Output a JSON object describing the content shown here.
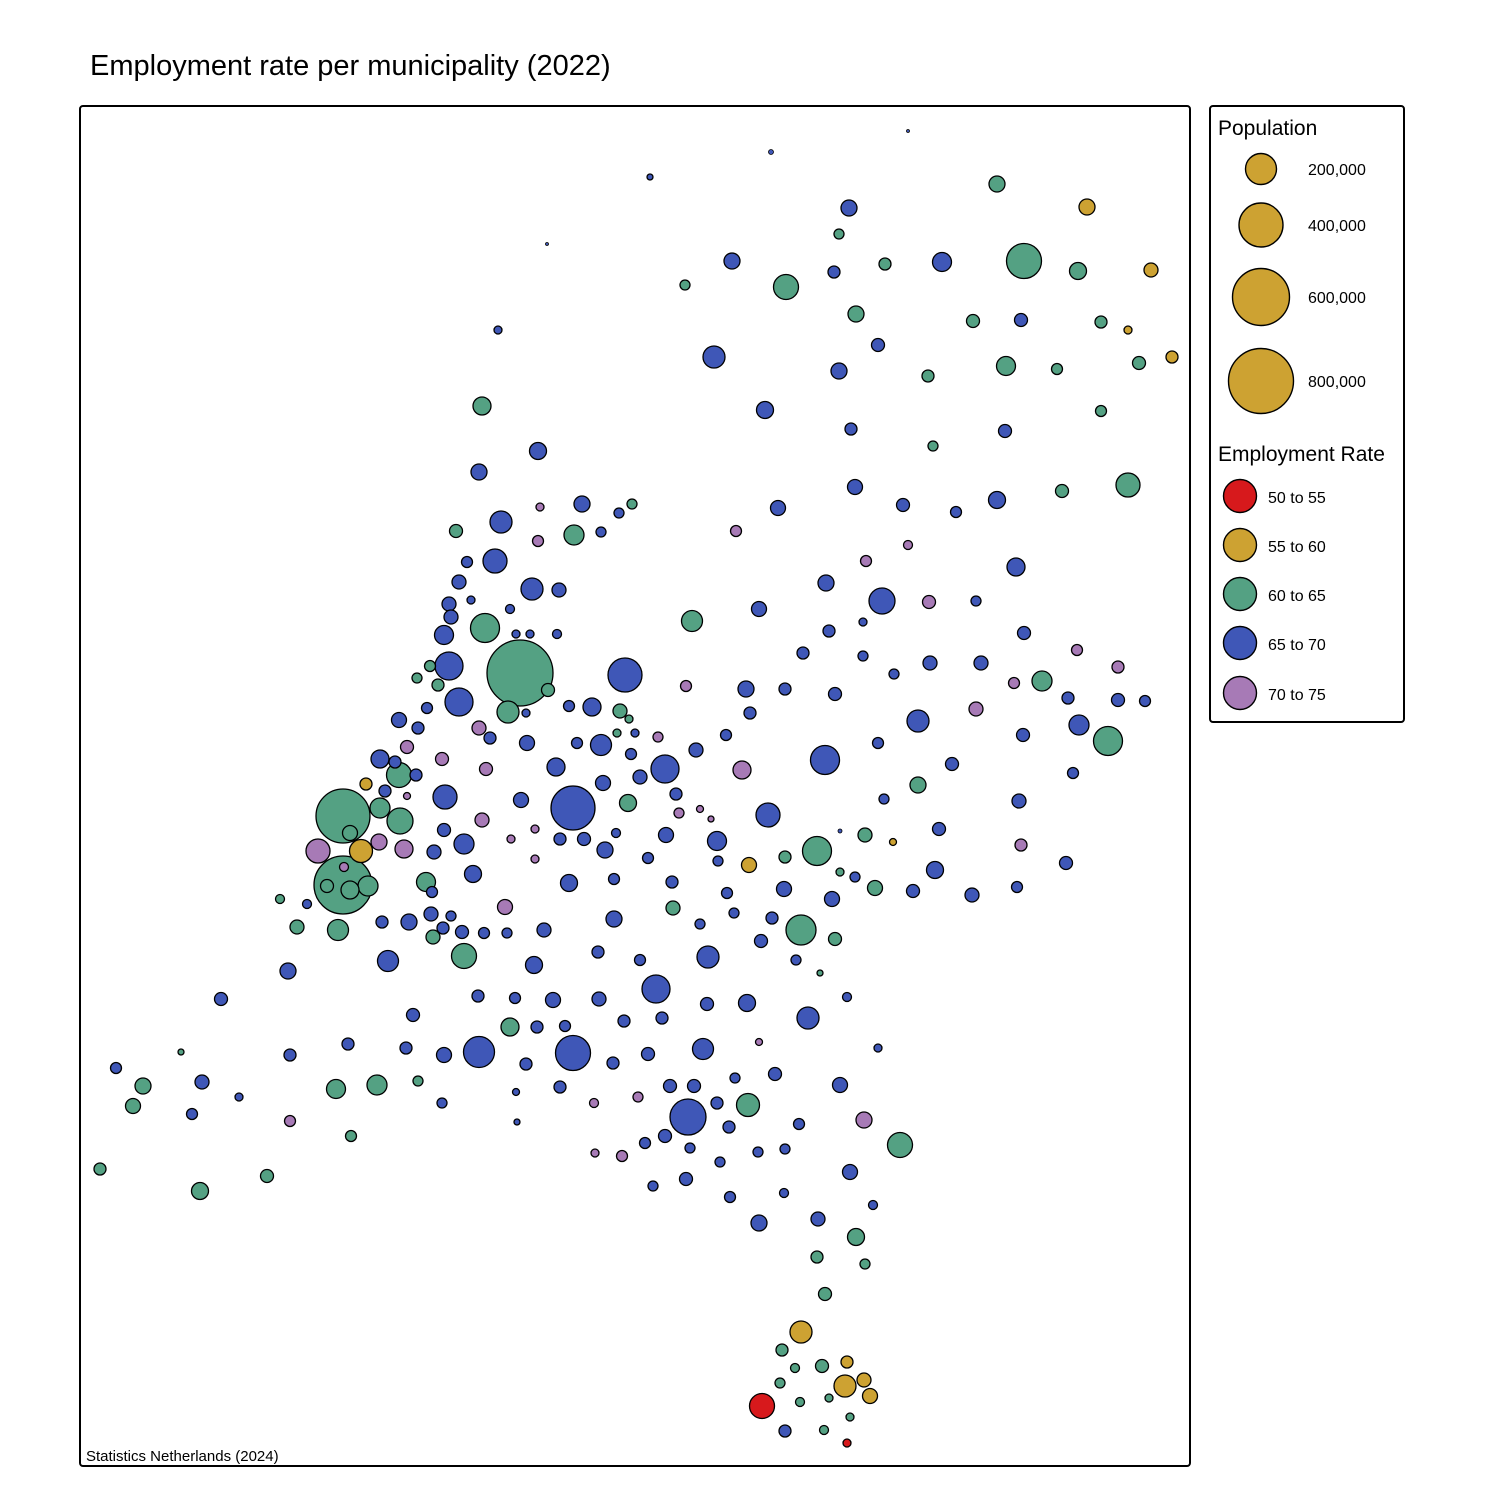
{
  "title": "Employment rate per municipality (2022)",
  "source": "Statistics Netherlands (2024)",
  "legend": {
    "population_title": "Population",
    "population_items": [
      {
        "label": "200,000",
        "value": 200000
      },
      {
        "label": "400,000",
        "value": 400000
      },
      {
        "label": "600,000",
        "value": 600000
      },
      {
        "label": "800,000",
        "value": 800000
      }
    ],
    "rate_title": "Employment Rate",
    "rate_items": [
      {
        "label": "50 to 55",
        "color": "#d7191c"
      },
      {
        "label": "55 to 60",
        "color": "#cda232"
      },
      {
        "label": "60 to 65",
        "color": "#54a183"
      },
      {
        "label": "65 to 70",
        "color": "#3f57b7"
      },
      {
        "label": "70 to 75",
        "color": "#a77ab6"
      }
    ]
  },
  "colors": {
    "red": "#d7191c",
    "gold": "#cda232",
    "green": "#54a183",
    "blue": "#3f57b7",
    "purple": "#a77ab6",
    "outline": "#000000"
  }
}
